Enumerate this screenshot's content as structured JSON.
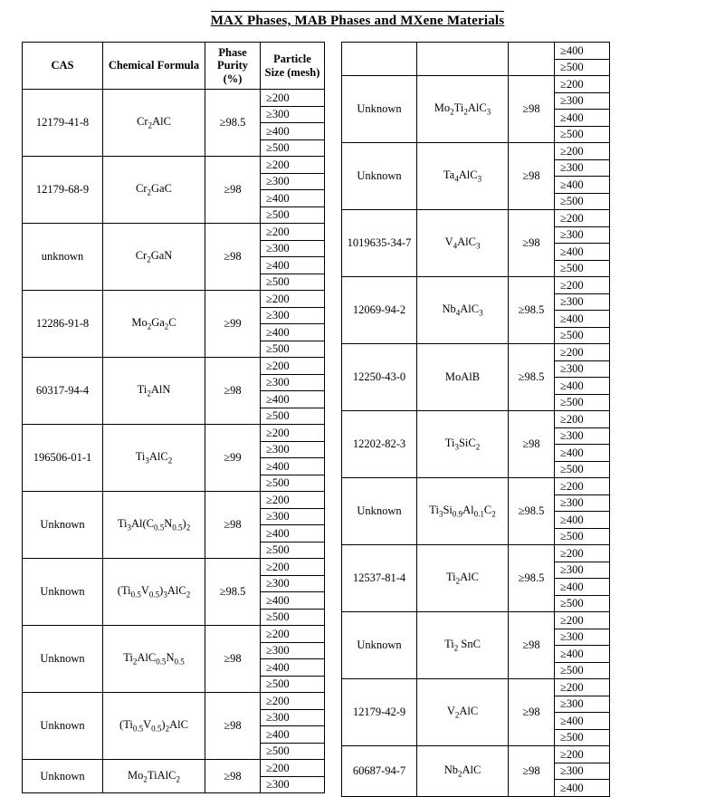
{
  "title": "MAX Phases, MAB Phases and MXene Materials",
  "headers": {
    "cas": "CAS",
    "formula": "Chemical Formula",
    "purity": "Phase Purity (%)",
    "mesh": "Particle Size (mesh)"
  },
  "mesh_set": [
    "≥200",
    "≥300",
    "≥400",
    "≥500"
  ],
  "left": [
    {
      "cas": "12179-41-8",
      "formula_html": "Cr<span class='sub'>2</span>AlC",
      "purity": "≥98.5",
      "mesh": 4
    },
    {
      "cas": "12179-68-9",
      "formula_html": "Cr<span class='sub'>2</span>GaC",
      "purity": "≥98",
      "mesh": 4
    },
    {
      "cas": "unknown",
      "formula_html": "Cr<span class='sub'>2</span>GaN",
      "purity": "≥98",
      "mesh": 4
    },
    {
      "cas": "12286-91-8",
      "formula_html": "Mo<span class='sub'>2</span>Ga<span class='sub'>2</span>C",
      "purity": "≥99",
      "mesh": 4
    },
    {
      "cas": "60317-94-4",
      "formula_html": "Ti<span class='sub'>2</span>AlN",
      "purity": "≥98",
      "mesh": 4
    },
    {
      "cas": "196506-01-1",
      "formula_html": "Ti<span class='sub'>3</span>AlC<span class='sub'>2</span>",
      "purity": "≥99",
      "mesh": 4
    },
    {
      "cas": "Unknown",
      "formula_html": "Ti<span class='sub'>3</span>Al(C<span class='sub'>0.5</span>N<span class='sub'>0.5</span>)<span class='sub'>2</span>",
      "purity": "≥98",
      "mesh": 4
    },
    {
      "cas": "Unknown",
      "formula_html": "(Ti<span class='sub'>0.5</span>V<span class='sub'>0.5</span>)<span class='sub'>3</span>AlC<span class='sub'>2</span>",
      "purity": "≥98.5",
      "mesh": 4
    },
    {
      "cas": "Unknown",
      "formula_html": "Ti<span class='sub'>2</span>AlC<span class='sub'>0.5</span>N<span class='sub'>0.5</span>",
      "purity": "≥98",
      "mesh": 4
    },
    {
      "cas": "Unknown",
      "formula_html": "(Ti<span class='sub'>0.5</span>V<span class='sub'>0.5</span>)<span class='sub'>2</span>AlC",
      "purity": "≥98",
      "mesh": 4
    },
    {
      "cas": "Unknown",
      "formula_html": "Mo<span class='sub'>2</span>TiAlC<span class='sub'>2</span>",
      "purity": "≥98",
      "mesh": 2
    }
  ],
  "right_cont": {
    "mesh_remaining": [
      "≥400",
      "≥500"
    ]
  },
  "right": [
    {
      "cas": "Unknown",
      "formula_html": "Mo<span class='sub'>2</span>Ti<span class='sub'>2</span>AlC<span class='sub'>3</span>",
      "purity": "≥98",
      "mesh": 4
    },
    {
      "cas": "Unknown",
      "formula_html": "Ta<span class='sub'>4</span>AlC<span class='sub'>3</span>",
      "purity": "≥98",
      "mesh": 4
    },
    {
      "cas": "1019635-34-7",
      "formula_html": "V<span class='sub'>4</span>AlC<span class='sub'>3</span>",
      "purity": "≥98",
      "mesh": 4
    },
    {
      "cas": "12069-94-2",
      "formula_html": "Nb<span class='sub'>4</span>AlC<span class='sub'>3</span>",
      "purity": "≥98.5",
      "mesh": 4
    },
    {
      "cas": "12250-43-0",
      "formula_html": "MoAlB",
      "purity": "≥98.5",
      "mesh": 4
    },
    {
      "cas": "12202-82-3",
      "formula_html": "Ti<span class='sub'>3</span>SiC<span class='sub'>2</span>",
      "purity": "≥98",
      "mesh": 4
    },
    {
      "cas": "Unknown",
      "formula_html": "Ti<span class='sub'>3</span>Si<span class='sub'>0.9</span>Al<span class='sub'>0.1</span>C<span class='sub'>2</span>",
      "purity": "≥98.5",
      "mesh": 4
    },
    {
      "cas": "12537-81-4",
      "formula_html": "Ti<span class='sub'>2</span>AlC",
      "purity": "≥98.5",
      "mesh": 4
    },
    {
      "cas": "Unknown",
      "formula_html": "Ti<span class='sub'>2</span> SnC",
      "purity": "≥98",
      "mesh": 4
    },
    {
      "cas": "12179-42-9",
      "formula_html": "V<span class='sub'>2</span>AlC",
      "purity": "≥98",
      "mesh": 4
    },
    {
      "cas": "60687-94-7",
      "formula_html": "Nb<span class='sub'>2</span>AlC",
      "purity": "≥98",
      "mesh": 3
    }
  ]
}
